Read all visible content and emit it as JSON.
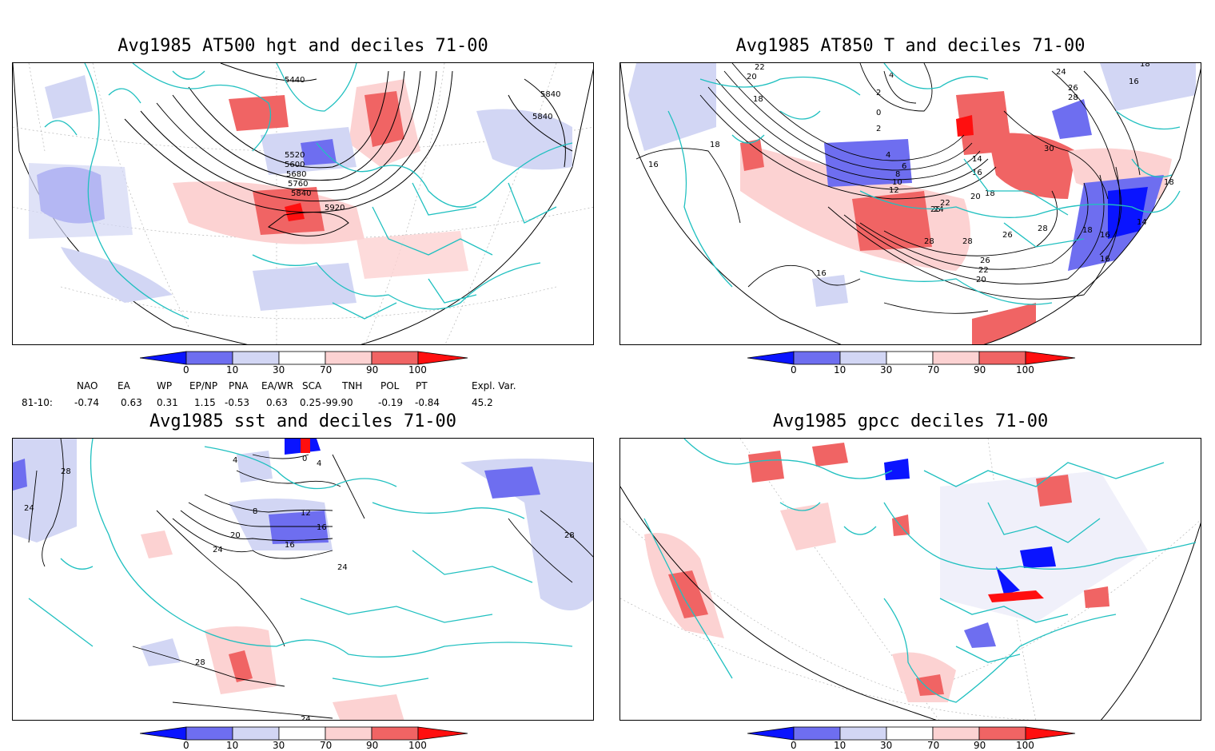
{
  "panels": [
    {
      "title": "Avg1985 AT500 hgt and deciles 71-00",
      "contour_labels": [
        "5440",
        "5840",
        "5840",
        "5520",
        "5600",
        "5680",
        "5760",
        "5840",
        "5920"
      ]
    },
    {
      "title": "Avg1985 AT850 T and deciles 71-00",
      "contour_labels": [
        "22",
        "20",
        "18",
        "16",
        "18",
        "4",
        "2",
        "0",
        "2",
        "4",
        "6",
        "8",
        "10",
        "12",
        "14",
        "16",
        "18",
        "20",
        "22",
        "24",
        "26",
        "28",
        "28",
        "26",
        "28",
        "24",
        "26",
        "28",
        "30",
        "18",
        "16",
        "14",
        "18",
        "16",
        "16",
        "18",
        "16",
        "20",
        "22",
        "26"
      ]
    },
    {
      "title": "Avg1985 sst and deciles 71-00",
      "contour_labels": [
        "28",
        "24",
        "4",
        "0",
        "4",
        "8",
        "12",
        "16",
        "20",
        "24",
        "16",
        "24",
        "28",
        "28",
        "24"
      ]
    },
    {
      "title": "Avg1985 gpcc deciles 71-00",
      "contour_labels": []
    }
  ],
  "colorbar": {
    "labels": [
      "0",
      "10",
      "30",
      "70",
      "90",
      "100"
    ],
    "colors": [
      "#0a14ff",
      "#6e6ef0",
      "#d2d6f4",
      "#ffffff",
      "#fcd2d2",
      "#f06464",
      "#ff0f0f"
    ]
  },
  "indices": {
    "headers": [
      "NAO",
      "EA",
      "WP",
      "EP/NP",
      "PNA",
      "EA/WR",
      "SCA",
      "TNH",
      "POL",
      "PT",
      "Expl. Var."
    ],
    "row_label": "81-10:",
    "values": [
      "-0.74",
      "0.63",
      "0.31",
      "1.15",
      "-0.53",
      "0.63",
      "0.25",
      "-99.90",
      "-0.19",
      "-0.84",
      "45.2"
    ]
  },
  "map_colors": {
    "coast": "#20c0c0",
    "neg_strong": "#0a14ff",
    "neg_mid": "#6e6ef0",
    "neg_light": "#d2d6f4",
    "pos_light": "#fcd2d2",
    "pos_mid": "#f06464",
    "pos_strong": "#ff0f0f"
  }
}
